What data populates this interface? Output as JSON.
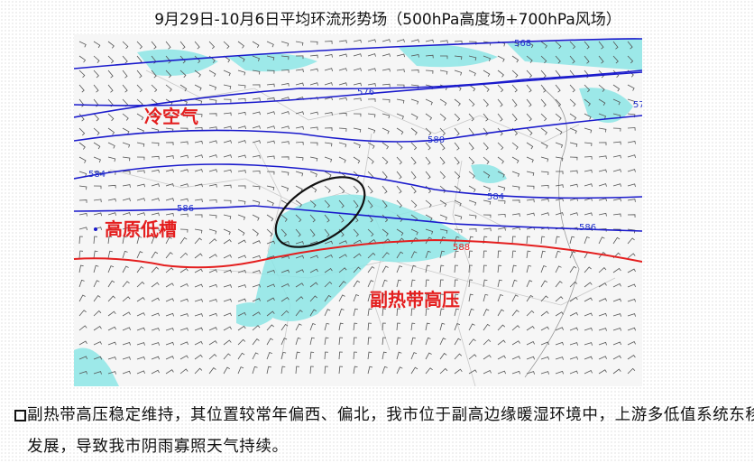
{
  "title": "9月29日-10月6日平均环流形势场（500hPa高度场+700hPa风场）",
  "map": {
    "contour_labels": [
      568,
      576,
      580,
      584,
      584,
      586,
      586,
      588,
      57
    ],
    "annotations": {
      "cold_air": "冷空气",
      "plateau_trough": "高原低槽",
      "subtropical_high": "副热带高压"
    }
  },
  "bullet": "副热带高压稳定维持，其位置较常年偏西、偏北，我市位于副高边缘暖湿环境中，上游多低值系统东移发展，导致我市阴雨寡照天气持续。"
}
